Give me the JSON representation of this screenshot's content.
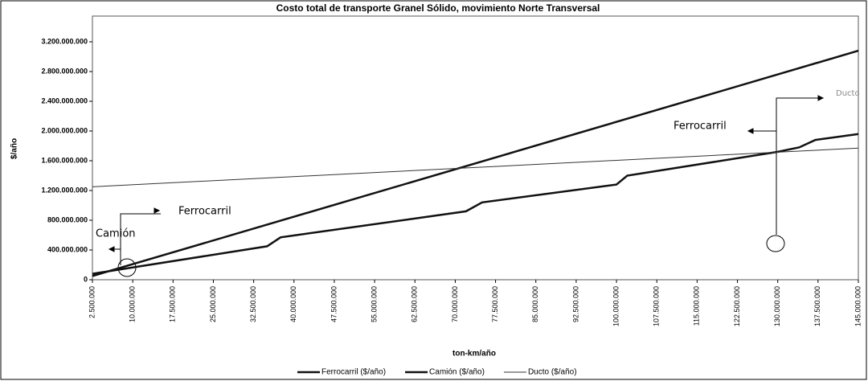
{
  "chart_data": {
    "type": "line",
    "title": "Costo total de transporte Granel Sólido, movimiento Norte Transversal",
    "x_label": "ton-km/año",
    "y_label": "$/año",
    "xlim": [
      2500000,
      145000000
    ],
    "xticks": [
      {
        "value": 2500000,
        "label": "2.500.000"
      },
      {
        "value": 10000000,
        "label": "10.000.000"
      },
      {
        "value": 17500000,
        "label": "17.500.000"
      },
      {
        "value": 25000000,
        "label": "25.000.000"
      },
      {
        "value": 32500000,
        "label": "32.500.000"
      },
      {
        "value": 40000000,
        "label": "40.000.000"
      },
      {
        "value": 47500000,
        "label": "47.500.000"
      },
      {
        "value": 55000000,
        "label": "55.000.000"
      },
      {
        "value": 62500000,
        "label": "62.500.000"
      },
      {
        "value": 70000000,
        "label": "70.000.000"
      },
      {
        "value": 77500000,
        "label": "77.500.000"
      },
      {
        "value": 85000000,
        "label": "85.000.000"
      },
      {
        "value": 92500000,
        "label": "92.500.000"
      },
      {
        "value": 100000000,
        "label": "100.000.000"
      },
      {
        "value": 107500000,
        "label": "107.500.000"
      },
      {
        "value": 115000000,
        "label": "115.000.000"
      },
      {
        "value": 122500000,
        "label": "122.500.000"
      },
      {
        "value": 130000000,
        "label": "130.000.000"
      },
      {
        "value": 137500000,
        "label": "137.500.000"
      },
      {
        "value": 145000000,
        "label": "145.000.000"
      }
    ],
    "ylim": [
      0,
      3200000000
    ],
    "yticks": [
      0,
      {
        "value": 400000000,
        "label": "400.000.000"
      },
      {
        "value": 800000000,
        "label": "800.000.000"
      },
      {
        "value": 1200000000,
        "label": "1.200.000.000"
      },
      {
        "value": 1600000000,
        "label": "1.600.000.000"
      },
      {
        "value": 2000000000,
        "label": "2.000.000.000"
      },
      {
        "value": 2400000000,
        "label": "2.400.000.000"
      },
      {
        "value": 2800000000,
        "label": "2.800.000.000"
      },
      {
        "value": 3200000000,
        "label": "3.200.000.000"
      }
    ],
    "grid": false,
    "legend": "bottom",
    "series": [
      {
        "name": "Ferrocarril ($/año)",
        "color": "#111111",
        "line_width": 2.5,
        "x": [
          2500000,
          145000000
        ],
        "values": [
          50000000,
          3080000000
        ]
      },
      {
        "name": "Camión ($/año)",
        "color": "#111111",
        "line_width": 2.5,
        "x": [
          2500000,
          35000000,
          37500000,
          72000000,
          75000000,
          100000000,
          102000000,
          130000000,
          134000000,
          137000000,
          145000000
        ],
        "values": [
          80000000,
          450000000,
          570000000,
          920000000,
          1040000000,
          1280000000,
          1400000000,
          1720000000,
          1780000000,
          1880000000,
          1960000000
        ]
      },
      {
        "name": "Ducto ($/año)",
        "color": "#333333",
        "line_width": 1,
        "x": [
          2500000,
          145000000
        ],
        "values": [
          1250000000,
          1770000000
        ]
      }
    ],
    "annotations": [
      "Camión",
      "Ferrocarril",
      "Ferrocarril",
      "Ducto"
    ]
  }
}
